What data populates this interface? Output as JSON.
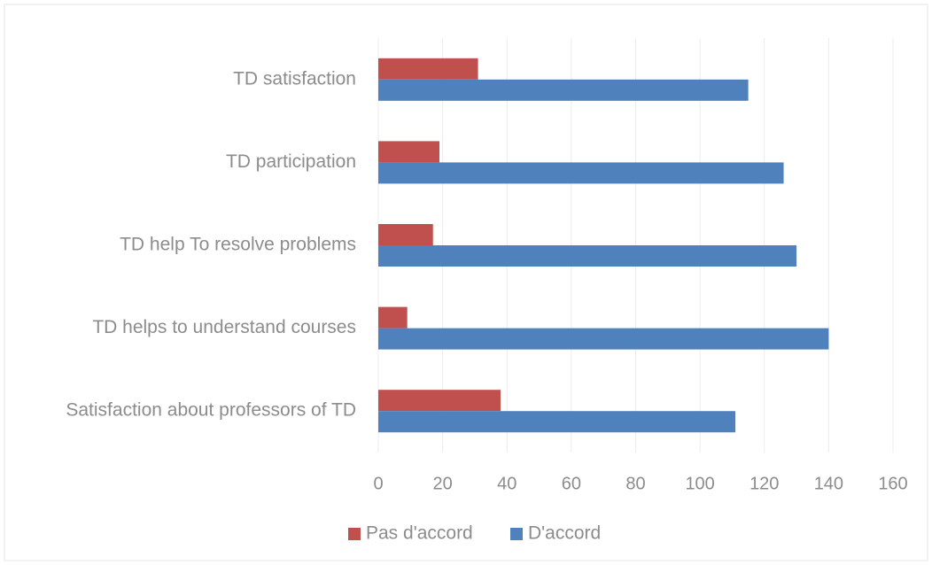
{
  "chart_data": {
    "type": "bar",
    "orientation": "horizontal",
    "categories": [
      "TD satisfaction",
      "TD participation",
      "TD help To resolve problems",
      "TD helps to understand courses",
      "Satisfaction about professors of TD"
    ],
    "series": [
      {
        "name": "Pas d'accord",
        "color": "#c0504d",
        "values": [
          31,
          19,
          17,
          9,
          38
        ]
      },
      {
        "name": "D'accord",
        "color": "#4f81bd",
        "values": [
          115,
          126,
          130,
          140,
          111
        ]
      }
    ],
    "xlim": [
      0,
      160
    ],
    "xticks": [
      0,
      20,
      40,
      60,
      80,
      100,
      120,
      140,
      160
    ],
    "grid": true,
    "legend": "bottom"
  }
}
